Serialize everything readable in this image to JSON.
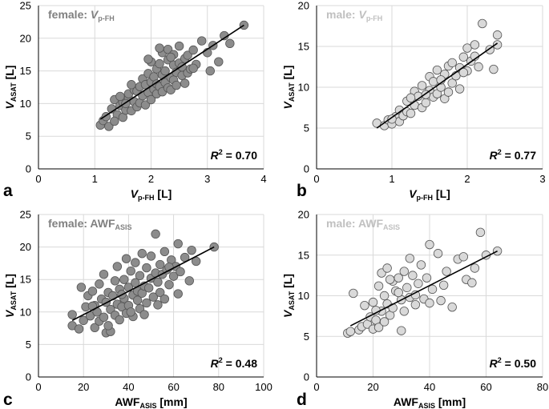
{
  "chart_data": [
    {
      "type": "scatter",
      "panel_letter": "a",
      "title": "female: ",
      "title_var": "V",
      "title_sub": "p-FH",
      "title_color": "#808080",
      "xlabel_main": "V",
      "xlabel_sub": "p-FH",
      "xlabel_unit": " [L]",
      "ylabel_main": "V",
      "ylabel_sub": "ASAT",
      "ylabel_unit": " [L]",
      "xlim": [
        0,
        4
      ],
      "xticks": [
        0,
        1,
        2,
        3,
        4
      ],
      "ylim": [
        0,
        25
      ],
      "yticks": [
        0,
        5,
        10,
        15,
        20,
        25
      ],
      "marker_color": "#8c8c8c",
      "fit_line": [
        [
          1.1,
          7.6
        ],
        [
          3.65,
          22.0
        ]
      ],
      "r2_label": "R",
      "r2_value": " = 0.70",
      "points": [
        [
          1.1,
          6.7
        ],
        [
          1.15,
          7.4
        ],
        [
          1.2,
          8.0
        ],
        [
          1.25,
          6.5
        ],
        [
          1.3,
          9.2
        ],
        [
          1.35,
          10.6
        ],
        [
          1.4,
          8.3
        ],
        [
          1.45,
          9.7
        ],
        [
          1.5,
          7.9
        ],
        [
          1.5,
          10.2
        ],
        [
          1.55,
          9.0
        ],
        [
          1.6,
          10.8
        ],
        [
          1.6,
          11.5
        ],
        [
          1.65,
          8.9
        ],
        [
          1.7,
          12.1
        ],
        [
          1.7,
          10.3
        ],
        [
          1.75,
          9.5
        ],
        [
          1.75,
          11.9
        ],
        [
          1.8,
          12.6
        ],
        [
          1.8,
          10.1
        ],
        [
          1.85,
          13.8
        ],
        [
          1.85,
          11.2
        ],
        [
          1.9,
          9.8
        ],
        [
          1.9,
          12.9
        ],
        [
          1.95,
          14.6
        ],
        [
          1.95,
          11.7
        ],
        [
          2.0,
          13.3
        ],
        [
          2.0,
          10.6
        ],
        [
          2.0,
          16.4
        ],
        [
          2.05,
          12.2
        ],
        [
          2.05,
          14.1
        ],
        [
          2.1,
          11.5
        ],
        [
          2.1,
          13.0
        ],
        [
          2.1,
          15.3
        ],
        [
          2.15,
          12.6
        ],
        [
          2.15,
          16.1
        ],
        [
          2.2,
          14.4
        ],
        [
          2.2,
          11.8
        ],
        [
          2.2,
          17.8
        ],
        [
          2.25,
          13.2
        ],
        [
          2.25,
          15.0
        ],
        [
          2.3,
          12.4
        ],
        [
          2.3,
          16.7
        ],
        [
          2.3,
          18.3
        ],
        [
          2.35,
          14.0
        ],
        [
          2.35,
          12.1
        ],
        [
          2.4,
          15.9
        ],
        [
          2.4,
          13.6
        ],
        [
          2.4,
          17.5
        ],
        [
          2.45,
          14.8
        ],
        [
          2.45,
          12.8
        ],
        [
          2.5,
          16.2
        ],
        [
          2.5,
          18.8
        ],
        [
          2.55,
          14.3
        ],
        [
          2.55,
          15.6
        ],
        [
          2.6,
          13.1
        ],
        [
          2.6,
          16.9
        ],
        [
          2.65,
          17.4
        ],
        [
          2.65,
          14.7
        ],
        [
          2.7,
          15.3
        ],
        [
          2.75,
          18.2
        ],
        [
          2.8,
          16.0
        ],
        [
          2.9,
          19.6
        ],
        [
          3.0,
          17.8
        ],
        [
          3.05,
          15.0
        ],
        [
          3.1,
          18.9
        ],
        [
          3.2,
          16.4
        ],
        [
          3.3,
          20.4
        ],
        [
          3.4,
          19.2
        ],
        [
          3.65,
          22.0
        ],
        [
          1.35,
          7.3
        ],
        [
          1.45,
          11.1
        ],
        [
          1.55,
          10.0
        ],
        [
          1.65,
          12.9
        ],
        [
          1.95,
          16.8
        ],
        [
          2.15,
          18.5
        ],
        [
          2.35,
          17.1
        ],
        [
          2.75,
          15.4
        ]
      ]
    },
    {
      "type": "scatter",
      "panel_letter": "b",
      "title": "male: ",
      "title_var": "V",
      "title_sub": "p-FH",
      "title_color": "#c0c0c0",
      "xlabel_main": "V",
      "xlabel_sub": "p-FH",
      "xlabel_unit": " [L]",
      "ylabel_main": "V",
      "ylabel_sub": "ASAT",
      "ylabel_unit": " [L]",
      "xlim": [
        0,
        3
      ],
      "xticks": [
        0,
        1,
        2,
        3
      ],
      "ylim": [
        0,
        20
      ],
      "yticks": [
        0,
        5,
        10,
        15,
        20
      ],
      "marker_color": "#d9d9d9",
      "fit_line": [
        [
          0.8,
          5.0
        ],
        [
          2.4,
          15.4
        ]
      ],
      "r2_label": "R",
      "r2_value": " = 0.77",
      "points": [
        [
          0.8,
          5.6
        ],
        [
          0.9,
          5.3
        ],
        [
          0.95,
          6.0
        ],
        [
          1.0,
          5.5
        ],
        [
          1.05,
          6.4
        ],
        [
          1.1,
          5.8
        ],
        [
          1.1,
          7.2
        ],
        [
          1.15,
          6.5
        ],
        [
          1.2,
          8.3
        ],
        [
          1.2,
          7.0
        ],
        [
          1.25,
          6.8
        ],
        [
          1.3,
          9.5
        ],
        [
          1.3,
          7.8
        ],
        [
          1.35,
          8.9
        ],
        [
          1.4,
          7.5
        ],
        [
          1.4,
          10.2
        ],
        [
          1.45,
          8.1
        ],
        [
          1.5,
          9.6
        ],
        [
          1.5,
          11.3
        ],
        [
          1.55,
          8.8
        ],
        [
          1.55,
          10.7
        ],
        [
          1.6,
          9.2
        ],
        [
          1.6,
          12.1
        ],
        [
          1.65,
          10.0
        ],
        [
          1.7,
          11.6
        ],
        [
          1.7,
          8.6
        ],
        [
          1.75,
          12.6
        ],
        [
          1.8,
          10.5
        ],
        [
          1.8,
          13.0
        ],
        [
          1.85,
          11.4
        ],
        [
          1.9,
          12.4
        ],
        [
          1.9,
          9.8
        ],
        [
          1.95,
          13.7
        ],
        [
          2.0,
          12.0
        ],
        [
          2.0,
          14.8
        ],
        [
          2.05,
          13.2
        ],
        [
          2.1,
          15.2
        ],
        [
          2.15,
          12.5
        ],
        [
          2.2,
          17.8
        ],
        [
          2.3,
          14.6
        ],
        [
          2.35,
          12.2
        ],
        [
          2.4,
          16.4
        ],
        [
          2.4,
          15.2
        ],
        [
          1.0,
          6.1
        ],
        [
          1.25,
          8.7
        ],
        [
          1.45,
          9.1
        ],
        [
          1.65,
          10.9
        ],
        [
          1.75,
          9.4
        ],
        [
          1.95,
          11.8
        ],
        [
          2.1,
          13.8
        ]
      ]
    },
    {
      "type": "scatter",
      "panel_letter": "c",
      "title": "female: AWF",
      "title_var": "",
      "title_sub": "ASIS",
      "title_color": "#808080",
      "xlabel_main": "AWF",
      "xlabel_sub": "ASIS",
      "xlabel_unit": " [mm]",
      "ylabel_main": "V",
      "ylabel_sub": "ASAT",
      "ylabel_unit": " [L]",
      "xlim": [
        0,
        100
      ],
      "xticks": [
        0,
        20,
        40,
        60,
        80,
        100
      ],
      "ylim": [
        0,
        25
      ],
      "yticks": [
        0,
        5,
        10,
        15,
        20,
        25
      ],
      "marker_color": "#8c8c8c",
      "fit_line": [
        [
          15,
          8.7
        ],
        [
          78,
          20.0
        ]
      ],
      "r2_label": "R",
      "r2_value": " = 0.48",
      "points": [
        [
          15,
          7.9
        ],
        [
          15,
          9.6
        ],
        [
          18,
          7.4
        ],
        [
          19,
          13.8
        ],
        [
          20,
          8.7
        ],
        [
          21,
          10.8
        ],
        [
          22,
          12.5
        ],
        [
          23,
          9.4
        ],
        [
          24,
          13.2
        ],
        [
          25,
          7.6
        ],
        [
          25,
          11.0
        ],
        [
          26,
          10.0
        ],
        [
          27,
          14.3
        ],
        [
          27,
          8.6
        ],
        [
          28,
          12.0
        ],
        [
          29,
          9.2
        ],
        [
          29,
          15.8
        ],
        [
          30,
          11.5
        ],
        [
          30,
          6.8
        ],
        [
          31,
          13.0
        ],
        [
          32,
          10.4
        ],
        [
          32,
          7.0
        ],
        [
          33,
          12.5
        ],
        [
          34,
          9.5
        ],
        [
          34,
          14.8
        ],
        [
          35,
          11.2
        ],
        [
          35,
          17.0
        ],
        [
          36,
          13.5
        ],
        [
          36,
          8.8
        ],
        [
          37,
          10.8
        ],
        [
          38,
          15.0
        ],
        [
          38,
          12.1
        ],
        [
          39,
          9.8
        ],
        [
          39,
          18.2
        ],
        [
          40,
          13.8
        ],
        [
          40,
          11.0
        ],
        [
          41,
          16.3
        ],
        [
          42,
          12.6
        ],
        [
          42,
          9.3
        ],
        [
          43,
          14.5
        ],
        [
          43,
          17.6
        ],
        [
          44,
          11.8
        ],
        [
          44,
          13.2
        ],
        [
          45,
          15.6
        ],
        [
          45,
          10.5
        ],
        [
          46,
          19.0
        ],
        [
          46,
          12.9
        ],
        [
          47,
          14.0
        ],
        [
          48,
          16.8
        ],
        [
          48,
          11.4
        ],
        [
          49,
          13.7
        ],
        [
          50,
          15.2
        ],
        [
          50,
          18.6
        ],
        [
          51,
          12.3
        ],
        [
          52,
          16.0
        ],
        [
          52,
          22.0
        ],
        [
          53,
          14.6
        ],
        [
          54,
          17.3
        ],
        [
          54,
          13.0
        ],
        [
          55,
          15.8
        ],
        [
          56,
          19.3
        ],
        [
          56,
          12.0
        ],
        [
          57,
          16.5
        ],
        [
          58,
          14.2
        ],
        [
          59,
          18.0
        ],
        [
          60,
          15.5
        ],
        [
          61,
          17.0
        ],
        [
          62,
          20.5
        ],
        [
          62,
          12.8
        ],
        [
          63,
          16.2
        ],
        [
          65,
          18.4
        ],
        [
          67,
          14.8
        ],
        [
          68,
          19.5
        ],
        [
          70,
          17.8
        ],
        [
          78,
          20.0
        ],
        [
          24,
          10.9
        ],
        [
          31,
          7.9
        ],
        [
          37,
          12.7
        ],
        [
          41,
          10.0
        ],
        [
          47,
          9.6
        ],
        [
          53,
          11.1
        ],
        [
          58,
          16.9
        ]
      ]
    },
    {
      "type": "scatter",
      "panel_letter": "d",
      "title": "male: AWF",
      "title_var": "",
      "title_sub": "ASIS",
      "title_color": "#c0c0c0",
      "xlabel_main": "AWF",
      "xlabel_sub": "ASIS",
      "xlabel_unit": " [mm]",
      "ylabel_main": "V",
      "ylabel_sub": "ASAT",
      "ylabel_unit": " [L]",
      "xlim": [
        0,
        80
      ],
      "xticks": [
        0,
        20,
        40,
        60,
        80
      ],
      "ylim": [
        0,
        20
      ],
      "yticks": [
        0,
        5,
        10,
        15,
        20
      ],
      "marker_color": "#d9d9d9",
      "fit_line": [
        [
          12,
          6.3
        ],
        [
          64,
          15.5
        ]
      ],
      "r2_label": "R",
      "r2_value": " = 0.50",
      "points": [
        [
          11,
          5.4
        ],
        [
          12,
          5.6
        ],
        [
          13,
          10.3
        ],
        [
          15,
          5.8
        ],
        [
          16,
          6.2
        ],
        [
          17,
          8.8
        ],
        [
          18,
          6.5
        ],
        [
          19,
          7.4
        ],
        [
          20,
          5.9
        ],
        [
          20,
          9.2
        ],
        [
          21,
          7.0
        ],
        [
          22,
          11.2
        ],
        [
          22,
          6.1
        ],
        [
          23,
          8.1
        ],
        [
          23,
          12.8
        ],
        [
          24,
          10.0
        ],
        [
          24,
          6.8
        ],
        [
          25,
          13.4
        ],
        [
          25,
          9.0
        ],
        [
          26,
          7.6
        ],
        [
          27,
          11.8
        ],
        [
          27,
          8.5
        ],
        [
          28,
          10.6
        ],
        [
          29,
          12.2
        ],
        [
          30,
          5.7
        ],
        [
          30,
          9.5
        ],
        [
          31,
          13.0
        ],
        [
          31,
          8.1
        ],
        [
          32,
          11.0
        ],
        [
          33,
          14.6
        ],
        [
          33,
          9.8
        ],
        [
          34,
          12.5
        ],
        [
          35,
          8.9
        ],
        [
          36,
          11.5
        ],
        [
          37,
          13.8
        ],
        [
          38,
          9.6
        ],
        [
          39,
          12.2
        ],
        [
          40,
          16.3
        ],
        [
          40,
          9.1
        ],
        [
          41,
          10.8
        ],
        [
          43,
          15.2
        ],
        [
          45,
          11.3
        ],
        [
          46,
          13.0
        ],
        [
          48,
          8.6
        ],
        [
          50,
          14.5
        ],
        [
          52,
          14.8
        ],
        [
          53,
          12.0
        ],
        [
          55,
          11.6
        ],
        [
          56,
          13.4
        ],
        [
          58,
          17.8
        ],
        [
          60,
          15.0
        ],
        [
          64,
          15.5
        ],
        [
          21,
          8.2
        ],
        [
          26,
          12.0
        ],
        [
          29,
          10.4
        ],
        [
          35,
          10.1
        ],
        [
          44,
          9.4
        ]
      ]
    }
  ]
}
